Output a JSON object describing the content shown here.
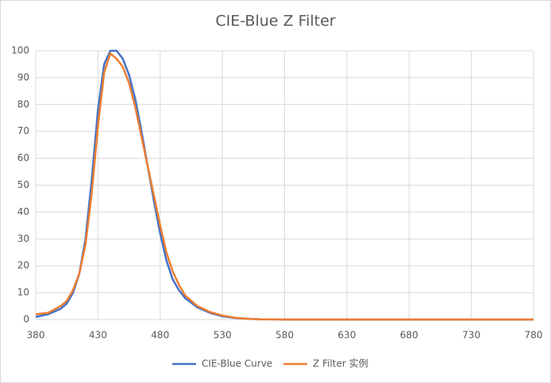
{
  "chart_data": {
    "type": "line",
    "title": "CIE-Blue Z Filter",
    "x": [
      380,
      390,
      400,
      405,
      410,
      415,
      420,
      425,
      430,
      435,
      440,
      445,
      450,
      455,
      460,
      465,
      470,
      475,
      480,
      485,
      490,
      495,
      500,
      510,
      520,
      530,
      540,
      550,
      560,
      580,
      630,
      680,
      730,
      780
    ],
    "series": [
      {
        "name": "CIE-Blue Curve",
        "color": "#4472c4",
        "values": [
          1,
          2,
          4,
          6,
          10,
          17,
          30,
          52,
          78,
          95,
          100,
          100,
          97,
          91,
          82,
          70,
          57,
          44,
          32,
          22,
          15,
          11,
          8,
          4.5,
          2.5,
          1.2,
          0.6,
          0.3,
          0.1,
          0,
          0,
          0,
          0,
          0
        ]
      },
      {
        "name": "Z Filter 实例",
        "color": "#ed7d31",
        "values": [
          2,
          2.5,
          5,
          7,
          11,
          17,
          28,
          47,
          72,
          92,
          99,
          97,
          94,
          88,
          79,
          68,
          57,
          46,
          35,
          25,
          18,
          13,
          9,
          5,
          2.8,
          1.5,
          0.7,
          0.3,
          0.1,
          0,
          0,
          0,
          0,
          0
        ]
      }
    ],
    "xlim": [
      380,
      780
    ],
    "xticks": [
      380,
      430,
      480,
      530,
      580,
      630,
      680,
      730,
      780
    ],
    "ylim": [
      0,
      100
    ],
    "yticks": [
      0,
      10,
      20,
      30,
      40,
      50,
      60,
      70,
      80,
      90,
      100
    ],
    "grid": true,
    "legend": "bottom"
  }
}
